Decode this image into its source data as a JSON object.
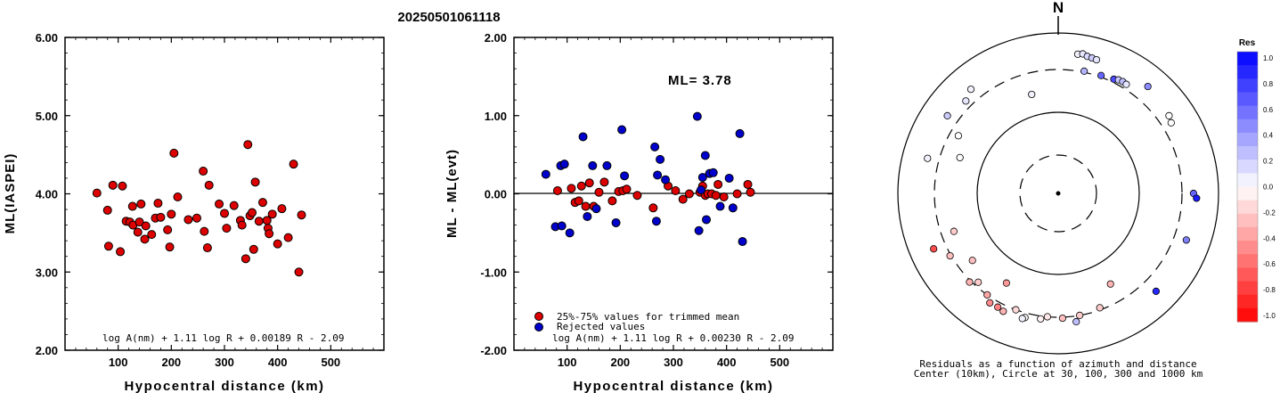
{
  "title": "20250501061118",
  "chart_data": [
    {
      "type": "scatter",
      "xlabel": "Hypocentral distance (km)",
      "ylabel": "ML(IASPEI)",
      "xlim": [
        0,
        600
      ],
      "ylim": [
        2.0,
        6.0
      ],
      "x_ticks": [
        "100",
        "200",
        "300",
        "400",
        "500"
      ],
      "y_ticks": [
        "2.00",
        "3.00",
        "4.00",
        "5.00",
        "6.00"
      ],
      "formula": "log A(nm) + 1.11 log R + 0.00189 R - 2.09",
      "marker_color": "#dd0000",
      "series": [
        {
          "x": [
            60,
            80,
            82,
            90,
            104,
            108,
            115,
            122,
            127,
            128,
            137,
            140,
            143,
            150,
            152,
            163,
            170,
            175,
            180,
            193,
            197,
            200,
            205,
            212,
            232,
            248,
            260,
            262,
            268,
            271,
            290,
            300,
            304,
            318,
            330,
            333,
            340,
            344,
            348,
            352,
            355,
            358,
            365,
            372,
            380,
            382,
            384,
            390,
            400,
            408,
            420,
            430,
            440,
            445
          ],
          "y": [
            4.01,
            3.79,
            3.33,
            4.11,
            3.26,
            4.1,
            3.65,
            3.64,
            3.84,
            3.6,
            3.51,
            3.64,
            3.87,
            3.42,
            3.59,
            3.48,
            3.69,
            3.88,
            3.7,
            3.54,
            3.32,
            3.74,
            4.52,
            3.96,
            3.67,
            3.69,
            4.29,
            3.52,
            3.31,
            4.11,
            3.87,
            3.75,
            3.56,
            3.85,
            3.66,
            3.6,
            3.17,
            4.63,
            3.72,
            3.76,
            3.29,
            4.15,
            3.65,
            3.89,
            3.66,
            3.56,
            3.49,
            3.74,
            3.36,
            3.81,
            3.44,
            4.38,
            3.0,
            3.73
          ]
        }
      ]
    },
    {
      "type": "scatter",
      "xlabel": "Hypocentral distance (km)",
      "ylabel": "ML - ML(evt)",
      "xlim": [
        0,
        600
      ],
      "ylim": [
        -2.0,
        2.0
      ],
      "x_ticks": [
        "100",
        "200",
        "300",
        "400",
        "500"
      ],
      "y_ticks": [
        "-2.00",
        "-1.00",
        "0.00",
        "1.00",
        "2.00"
      ],
      "annotation": "ML= 3.78",
      "formula": "log A(nm) + 1.11 log R + 0.00230 R - 2.09",
      "legend_position": "bottom-left",
      "series": [
        {
          "name": "25%-75% values for trimmed mean",
          "color": "#dd0000",
          "x": [
            82,
            108,
            115,
            122,
            127,
            135,
            142,
            150,
            160,
            170,
            185,
            197,
            205,
            212,
            232,
            262,
            290,
            304,
            318,
            330,
            350,
            355,
            360,
            365,
            372,
            380,
            384,
            395,
            420,
            440,
            445
          ],
          "y": [
            0.04,
            0.07,
            -0.11,
            -0.09,
            0.1,
            -0.16,
            0.14,
            -0.16,
            0.02,
            0.15,
            -0.09,
            0.03,
            0.04,
            0.06,
            -0.02,
            -0.18,
            0.1,
            0.04,
            -0.07,
            0.0,
            0.02,
            0.1,
            -0.02,
            0.0,
            0.0,
            -0.02,
            0.12,
            -0.04,
            0.0,
            0.12,
            0.02
          ]
        },
        {
          "name": "Rejected values",
          "color": "#0000cc",
          "x": [
            60,
            78,
            88,
            90,
            95,
            105,
            130,
            138,
            148,
            155,
            175,
            192,
            203,
            208,
            265,
            268,
            270,
            275,
            285,
            345,
            348,
            352,
            355,
            360,
            362,
            368,
            375,
            388,
            405,
            412,
            425,
            430
          ],
          "y": [
            0.25,
            -0.42,
            0.36,
            -0.41,
            0.38,
            -0.5,
            0.73,
            -0.29,
            0.36,
            -0.19,
            0.36,
            -0.37,
            0.82,
            0.23,
            0.6,
            -0.35,
            0.24,
            0.44,
            0.18,
            0.99,
            -0.47,
            0.05,
            0.21,
            0.49,
            -0.33,
            0.26,
            0.27,
            -0.16,
            0.2,
            -0.18,
            0.77,
            -0.61
          ]
        }
      ]
    }
  ],
  "polar": {
    "north_label": "N",
    "caption_line1": "Residuals as a function of azimuth and distance",
    "caption_line2": "Center (10km), Circle at 30, 100, 300 and 1000 km",
    "colorbar_title": "Res",
    "colorbar_ticks": [
      "1.0",
      "0.8",
      "0.6",
      "0.4",
      "0.2",
      "0.0",
      "-0.2",
      "-0.4",
      "-0.6",
      "-0.8",
      "-1.0"
    ],
    "stations": [
      {
        "az": 8,
        "dist": 620,
        "res": 0.05
      },
      {
        "az": 10,
        "dist": 640,
        "res": 0.1
      },
      {
        "az": 12,
        "dist": 610,
        "res": 0.15
      },
      {
        "az": 14,
        "dist": 600,
        "res": 0.2
      },
      {
        "az": 16,
        "dist": 590,
        "res": 0.1
      },
      {
        "az": 40,
        "dist": 600,
        "res": 0.45
      },
      {
        "az": 55,
        "dist": 520,
        "res": 0.0
      },
      {
        "az": 58,
        "dist": 480,
        "res": 0.0
      },
      {
        "az": 90,
        "dist": 520,
        "res": 0.6
      },
      {
        "az": 92,
        "dist": 580,
        "res": 0.9
      },
      {
        "az": 110,
        "dist": 540,
        "res": 0.5
      },
      {
        "az": 135,
        "dist": 580,
        "res": 0.85
      },
      {
        "az": 150,
        "dist": 210,
        "res": -0.3
      },
      {
        "az": 160,
        "dist": 290,
        "res": -0.2
      },
      {
        "az": 170,
        "dist": 300,
        "res": -0.2
      },
      {
        "az": 172,
        "dist": 410,
        "res": 0.25
      },
      {
        "az": 178,
        "dist": 320,
        "res": -0.25
      },
      {
        "az": 185,
        "dist": 300,
        "res": -0.1
      },
      {
        "az": 188,
        "dist": 355,
        "res": -0.05
      },
      {
        "az": 195,
        "dist": 390,
        "res": 0.0
      },
      {
        "az": 196,
        "dist": 420,
        "res": 0.05
      },
      {
        "az": 200,
        "dist": 300,
        "res": -0.15
      },
      {
        "az": 205,
        "dist": 420,
        "res": -0.3
      },
      {
        "az": 208,
        "dist": 395,
        "res": -0.5
      },
      {
        "az": 210,
        "dist": 205,
        "res": -0.4
      },
      {
        "az": 212,
        "dist": 400,
        "res": -0.45
      },
      {
        "az": 215,
        "dist": 300,
        "res": -0.35
      },
      {
        "az": 222,
        "dist": 280,
        "res": -0.2
      },
      {
        "az": 225,
        "dist": 330,
        "res": -0.3
      },
      {
        "az": 232,
        "dist": 230,
        "res": -0.25
      },
      {
        "az": 240,
        "dist": 320,
        "res": -0.25
      },
      {
        "az": 246,
        "dist": 540,
        "res": -0.7
      },
      {
        "az": 250,
        "dist": 240,
        "res": -0.2
      },
      {
        "az": 285,
        "dist": 520,
        "res": 0.05
      },
      {
        "az": 290,
        "dist": 210,
        "res": 0.0
      },
      {
        "az": 300,
        "dist": 260,
        "res": 0.0
      },
      {
        "az": 305,
        "dist": 520,
        "res": 0.2
      },
      {
        "az": 315,
        "dist": 430,
        "res": 0.1
      },
      {
        "az": 320,
        "dist": 530,
        "res": 0.05
      },
      {
        "az": 345,
        "dist": 200,
        "res": 0.05
      },
      {
        "az": 20,
        "dist": 330,
        "res": 0.6
      },
      {
        "az": 26,
        "dist": 360,
        "res": 0.7
      },
      {
        "az": 28,
        "dist": 390,
        "res": 0.2
      },
      {
        "az": 30,
        "dist": 400,
        "res": 0.25
      },
      {
        "az": 32,
        "dist": 390,
        "res": 0.1
      },
      {
        "az": 12,
        "dist": 320,
        "res": 0.3
      }
    ]
  }
}
